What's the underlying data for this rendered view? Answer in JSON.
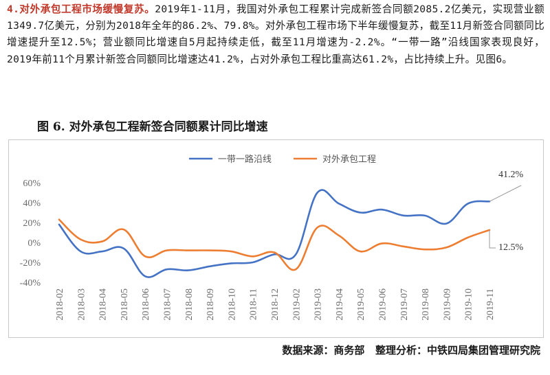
{
  "paragraph": {
    "heading": "4.对外承包工程市场缓慢复苏。",
    "body": "2019年1-11月，我国对外承包工程累计完成新签合同额2085.2亿美元，实现营业额1349.7亿美元，分别为2018年全年的86.2%、79.8%。对外承包工程市场下半年缓慢复苏，截至11月新签合同额同比增速提升至12.5%；营业额同比增速自5月起持续走低，截至11月增速为-2.2%。“一带一路”沿线国家表现良好，2019年前11个月累计新签合同额同比增速达41.2%，占对外承包工程比重高达61.2%，占比持续上升。见图6。"
  },
  "figure": {
    "title": "图 6. 对外承包工程新签合同额累计同比增速",
    "source": "数据来源：商务部   整理分析：中铁四局集团管理研究院"
  },
  "chart_data": {
    "type": "line",
    "categories": [
      "2018-02",
      "2018-03",
      "2018-04",
      "2018-05",
      "2018-06",
      "2018-07",
      "2018-08",
      "2018-09",
      "2018-10",
      "2018-11",
      "2018-12",
      "2019-02",
      "2019-03",
      "2019-04",
      "2019-05",
      "2019-06",
      "2019-07",
      "2019-08",
      "2019-09",
      "2019-10",
      "2019-11"
    ],
    "ylim": [
      -40,
      60
    ],
    "yticks": [
      "-40%",
      "-20%",
      "0%",
      "20%",
      "40%",
      "60%"
    ],
    "ytick_values": [
      -40,
      -20,
      0,
      20,
      40,
      60
    ],
    "series": [
      {
        "name": "一带一路沿线",
        "color": "#4472c4",
        "values": [
          18,
          -9,
          -9,
          -6,
          -34,
          -27,
          -28,
          -24,
          -21,
          -20,
          -12,
          -12,
          50,
          39,
          30,
          33,
          27,
          27,
          19,
          39,
          41.2
        ]
      },
      {
        "name": "对外承包工程",
        "color": "#ed7d31",
        "values": [
          23,
          3,
          1,
          13,
          -14,
          -8,
          -8,
          -8,
          -9,
          -14,
          -10,
          -27,
          15,
          7,
          -9,
          -1,
          -4,
          -7,
          -5,
          5,
          12.5
        ]
      }
    ],
    "annotations": [
      {
        "series": 0,
        "index": 20,
        "text": "41.2%"
      },
      {
        "series": 1,
        "index": 20,
        "text": "12.5%"
      }
    ],
    "legend": "top-center",
    "grid": false
  }
}
